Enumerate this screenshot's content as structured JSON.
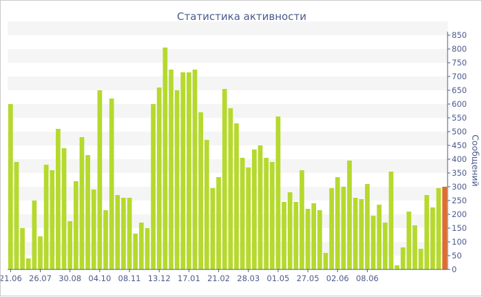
{
  "chart_data": {
    "type": "bar",
    "title": "Статистика активности",
    "ylabel": "Сообщений",
    "xlabel": "",
    "ylim": [
      0,
      850
    ],
    "y_ticks": [
      0,
      50,
      100,
      150,
      200,
      250,
      300,
      350,
      400,
      450,
      500,
      550,
      600,
      650,
      700,
      750,
      800,
      850
    ],
    "y_axis_side": "right",
    "grid": "horizontal alternating bands",
    "x_tick_labels": [
      {
        "label": "21.06",
        "index": 0
      },
      {
        "label": "26.07",
        "index": 5
      },
      {
        "label": "30.08",
        "index": 10
      },
      {
        "label": "04.10",
        "index": 15
      },
      {
        "label": "08.11",
        "index": 20
      },
      {
        "label": "13.12",
        "index": 25
      },
      {
        "label": "17.01",
        "index": 30
      },
      {
        "label": "21.02",
        "index": 35
      },
      {
        "label": "28.03",
        "index": 40
      },
      {
        "label": "01.05",
        "index": 45
      },
      {
        "label": "27.05",
        "index": 50
      },
      {
        "label": "02.06",
        "index": 55
      },
      {
        "label": "08.06",
        "index": 60
      }
    ],
    "values": [
      600,
      390,
      150,
      40,
      250,
      120,
      380,
      360,
      510,
      440,
      175,
      320,
      480,
      415,
      290,
      650,
      215,
      620,
      270,
      260,
      260,
      130,
      170,
      150,
      600,
      660,
      805,
      725,
      650,
      715,
      715,
      725,
      570,
      470,
      295,
      335,
      655,
      585,
      530,
      405,
      370,
      435,
      450,
      405,
      390,
      555,
      245,
      280,
      245,
      360,
      220,
      240,
      215,
      60,
      295,
      335,
      300,
      395,
      260,
      255,
      310,
      195,
      235,
      170,
      355,
      15,
      80,
      210,
      160,
      75,
      270,
      225,
      295,
      300
    ],
    "colors": {
      "bar": "#b5d92d",
      "last_bar": "#e06c2e",
      "axis": "#4b5a8a",
      "grid_band": "#f5f5f5"
    },
    "highlight_last": true
  }
}
